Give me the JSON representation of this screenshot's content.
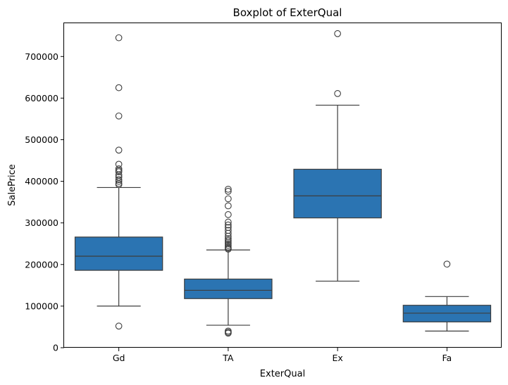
{
  "chart_data": {
    "type": "box",
    "title": "Boxplot of ExterQual",
    "xlabel": "ExterQual",
    "ylabel": "SalePrice",
    "categories": [
      "Gd",
      "TA",
      "Ex",
      "Fa"
    ],
    "ylim": [
      0,
      780000
    ],
    "yticks": [
      0,
      100000,
      200000,
      300000,
      400000,
      500000,
      600000,
      700000
    ],
    "ytick_labels": [
      "0",
      "100000",
      "200000",
      "300000",
      "400000",
      "500000",
      "600000",
      "700000"
    ],
    "box_color": "#2b74b2",
    "line_color": "#3d3d3d",
    "boxes": [
      {
        "category": "Gd",
        "whisker_low": 100000,
        "q1": 186000,
        "median": 220000,
        "q3": 266000,
        "whisker_high": 385000,
        "outliers": [
          745000,
          625000,
          557000,
          475000,
          441000,
          430000,
          426000,
          423000,
          415000,
          410000,
          404000,
          400000,
          395000,
          392000,
          52000
        ]
      },
      {
        "category": "TA",
        "whisker_low": 54000,
        "q1": 118000,
        "median": 138000,
        "q3": 165000,
        "whisker_high": 235000,
        "outliers": [
          381000,
          376000,
          358000,
          341000,
          320000,
          302000,
          295000,
          289000,
          282000,
          275000,
          268000,
          262000,
          258000,
          254000,
          250000,
          246000,
          242000,
          239000,
          237000,
          40000,
          37000,
          35000
        ]
      },
      {
        "category": "Ex",
        "whisker_low": 160000,
        "q1": 312000,
        "median": 365000,
        "q3": 429000,
        "whisker_high": 583000,
        "outliers": [
          755000,
          611000
        ]
      },
      {
        "category": "Fa",
        "whisker_low": 40000,
        "q1": 62000,
        "median": 83000,
        "q3": 102000,
        "whisker_high": 123000,
        "outliers": [
          201000
        ]
      }
    ]
  }
}
